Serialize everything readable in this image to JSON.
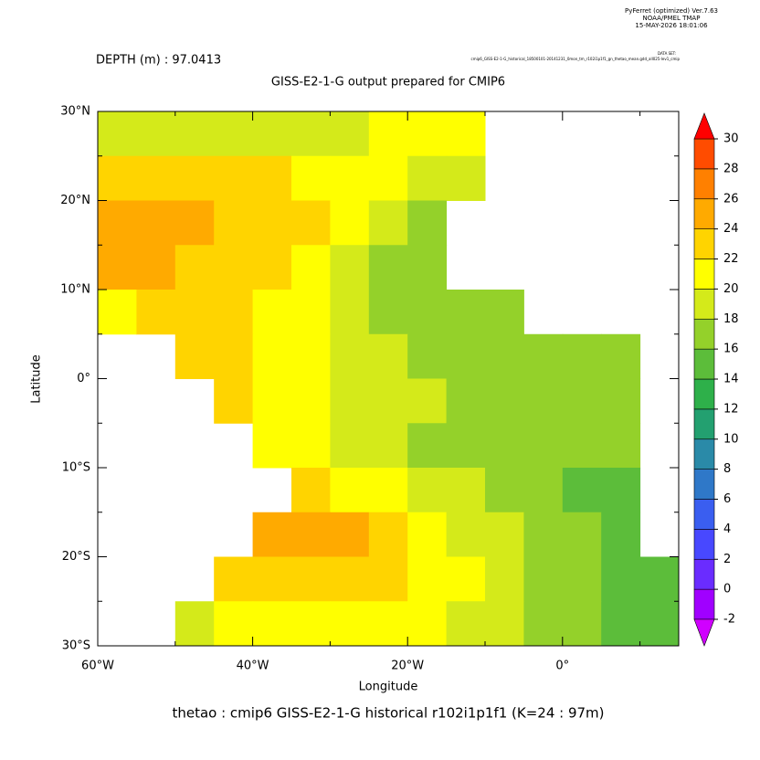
{
  "chart_data": {
    "type": "heatmap",
    "header": "DEPTH (m) : 97.0413",
    "title": "GISS-E2-1-G output prepared for CMIP6",
    "footer": "thetao : cmip6 GISS-E2-1-G historical r102i1p1f1   (K=24 : 97m)",
    "credits": [
      "PyFerret (optimized) Ver.7.63",
      "NOAA/PMEL TMAP",
      "15-MAY-2026 18:01:06"
    ],
    "dataset_label": "DATA SET:",
    "dataset": "cmip6_GISS-E2-1-G_historical_18500101-20141231_0mon_tm_r102i1p1f1_gn_thetao_mean.gdd_all025-lev1_cmip",
    "x_label": "Longitude",
    "y_label": "Latitude",
    "xlim": [
      -60,
      15
    ],
    "ylim": [
      -30,
      30
    ],
    "xticks": [
      {
        "value": -60,
        "label": "60°W"
      },
      {
        "value": -40,
        "label": "40°W"
      },
      {
        "value": -20,
        "label": "20°W"
      },
      {
        "value": 0,
        "label": "0°"
      }
    ],
    "xminorticks": [
      -50,
      -30,
      -10,
      10
    ],
    "yticks": [
      {
        "value": 30,
        "label": "30°N"
      },
      {
        "value": 20,
        "label": "20°N"
      },
      {
        "value": 10,
        "label": "10°N"
      },
      {
        "value": 0,
        "label": "0°"
      },
      {
        "value": -10,
        "label": "10°S"
      },
      {
        "value": -20,
        "label": "20°S"
      },
      {
        "value": -30,
        "label": "30°S"
      }
    ],
    "yminorticks": [
      25,
      15,
      5,
      -5,
      -15,
      -25
    ],
    "x": [
      -57.5,
      -52.5,
      -47.5,
      -42.5,
      -37.5,
      -32.5,
      -27.5,
      -22.5,
      -17.5,
      -12.5,
      -7.5,
      -2.5,
      2.5,
      7.5,
      12.5
    ],
    "y": [
      27.5,
      22.5,
      17.5,
      12.5,
      7.5,
      2.5,
      -2.5,
      -7.5,
      -12.5,
      -17.5,
      -22.5,
      -27.5
    ],
    "z": [
      [
        19,
        19,
        18,
        18,
        18,
        19,
        19,
        20,
        20,
        20,
        null,
        null,
        null,
        null,
        null
      ],
      [
        23,
        23,
        22,
        22,
        22,
        21,
        21,
        20,
        19,
        18,
        null,
        null,
        null,
        null,
        null
      ],
      [
        24,
        24,
        24,
        23,
        23,
        22,
        21,
        19,
        17,
        null,
        null,
        null,
        null,
        null,
        null
      ],
      [
        24,
        24,
        23,
        23,
        22,
        21,
        19,
        17,
        16,
        null,
        null,
        null,
        null,
        null,
        null
      ],
      [
        21,
        22,
        23,
        22,
        21,
        20,
        18,
        17,
        17,
        17,
        17,
        null,
        null,
        null,
        null
      ],
      [
        null,
        null,
        23,
        22,
        21,
        20,
        19,
        18,
        17,
        17,
        17,
        17,
        16,
        16,
        null
      ],
      [
        null,
        null,
        null,
        23,
        21,
        20,
        19,
        19,
        18,
        17,
        17,
        17,
        16,
        16,
        null
      ],
      [
        null,
        null,
        null,
        null,
        21,
        20,
        19,
        18,
        17,
        17,
        16,
        16,
        16,
        16,
        null
      ],
      [
        null,
        null,
        null,
        null,
        null,
        22,
        21,
        20,
        19,
        18,
        17,
        16,
        15,
        15,
        null
      ],
      [
        null,
        null,
        null,
        null,
        24,
        24,
        24,
        23,
        21,
        19,
        18,
        17,
        16,
        14,
        null
      ],
      [
        null,
        null,
        null,
        22,
        23,
        23,
        23,
        22,
        21,
        20,
        18,
        17,
        16,
        15,
        14
      ],
      [
        null,
        null,
        19,
        20,
        21,
        21,
        21,
        20,
        20,
        19,
        18,
        17,
        16,
        15,
        14
      ]
    ],
    "levels": [
      -2,
      0,
      2,
      4,
      6,
      8,
      10,
      12,
      14,
      16,
      18,
      20,
      22,
      24,
      26,
      28,
      30
    ],
    "colors": [
      "#a000ff",
      "#6a2cff",
      "#4848ff",
      "#3a5ef0",
      "#2f78c8",
      "#2a8aa8",
      "#23a070",
      "#2eb04a",
      "#5cbd3a",
      "#94d12a",
      "#d4ea1a",
      "#ffff00",
      "#ffd400",
      "#ffaa00",
      "#ff8000",
      "#ff4c00"
    ],
    "under_color": "#d000ff",
    "over_color": "#ff0000"
  }
}
